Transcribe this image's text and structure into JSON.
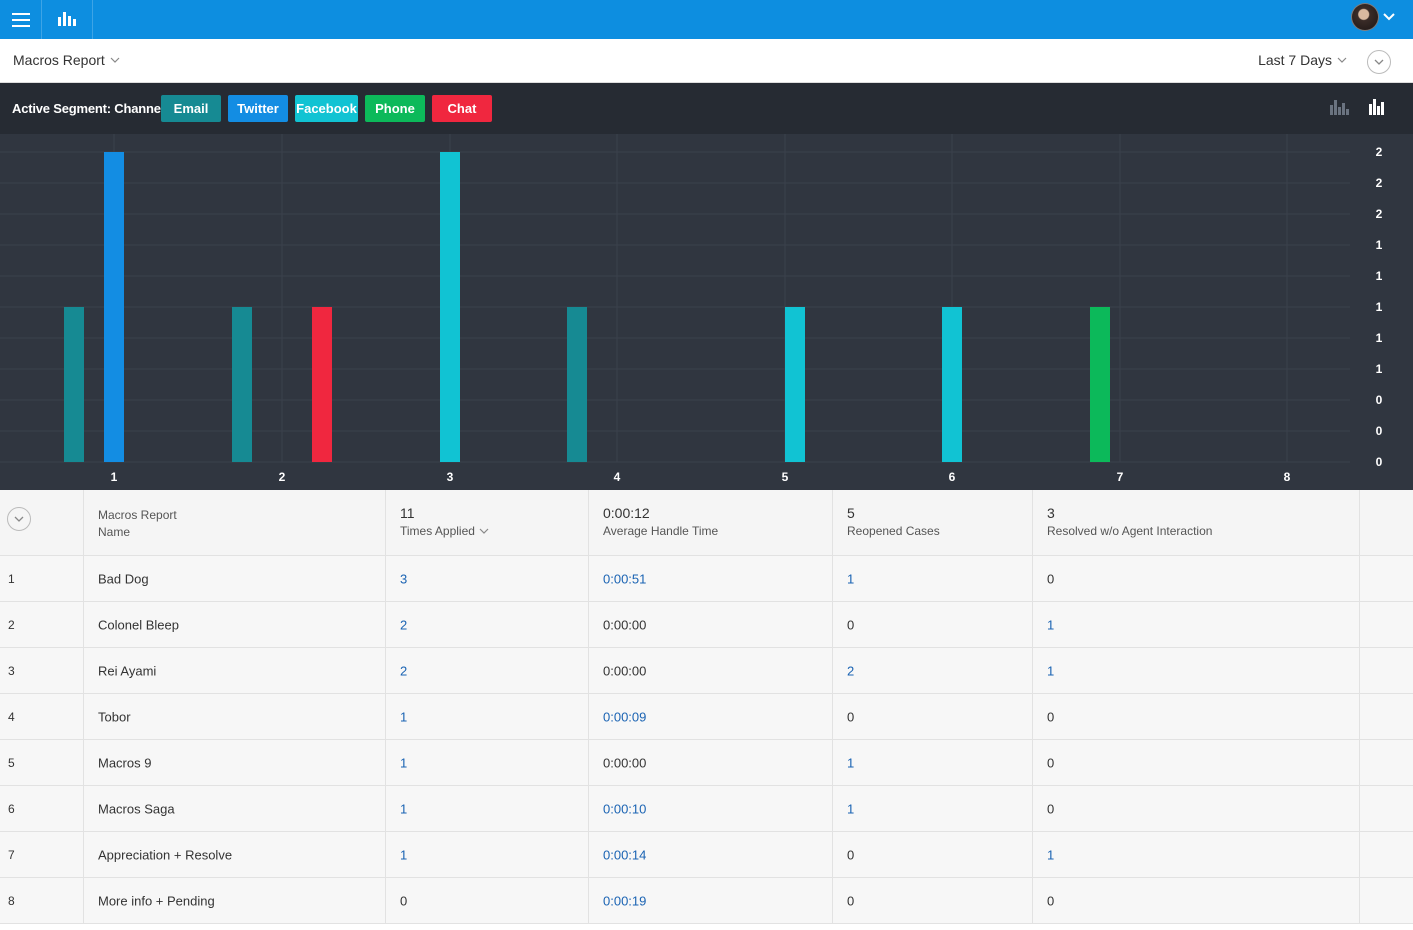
{
  "header": {
    "report_title": "Macros Report",
    "date_range": "Last 7 Days"
  },
  "segment": {
    "label": "Active Segment: Channels",
    "buttons": [
      {
        "label": "Email",
        "color": "#168a93"
      },
      {
        "label": "Twitter",
        "color": "#138de3"
      },
      {
        "label": "Facebook",
        "color": "#11c3d3"
      },
      {
        "label": "Phone",
        "color": "#0cb95a"
      },
      {
        "label": "Chat",
        "color": "#f0273f"
      }
    ]
  },
  "chart_data": {
    "type": "bar",
    "categories": [
      "1",
      "2",
      "3",
      "4",
      "5",
      "6",
      "7",
      "8"
    ],
    "y_tick_labels": [
      "2",
      "2",
      "2",
      "1",
      "1",
      "1",
      "1",
      "1",
      "0",
      "0",
      "0"
    ],
    "ylim": [
      0,
      2
    ],
    "grid": true,
    "series": [
      {
        "name": "Email",
        "color": "#168a93",
        "values": [
          1,
          1,
          0,
          1,
          0,
          0,
          0,
          0
        ]
      },
      {
        "name": "Twitter",
        "color": "#138de3",
        "values": [
          2,
          0,
          0,
          0,
          0,
          0,
          0,
          0
        ]
      },
      {
        "name": "Facebook",
        "color": "#11c3d3",
        "values": [
          0,
          0,
          2,
          0,
          1,
          1,
          0,
          0
        ]
      },
      {
        "name": "Phone",
        "color": "#0cb95a",
        "values": [
          0,
          0,
          0,
          0,
          0,
          0,
          1,
          0
        ]
      },
      {
        "name": "Chat",
        "color": "#f0273f",
        "values": [
          0,
          1,
          0,
          0,
          0,
          0,
          0,
          0
        ]
      }
    ]
  },
  "table": {
    "header": {
      "name_col_line1": "Macros Report",
      "name_col_line2": "Name",
      "columns": [
        {
          "value": "11",
          "label": "Times Applied"
        },
        {
          "value": "0:00:12",
          "label": "Average Handle Time"
        },
        {
          "value": "5",
          "label": "Reopened Cases"
        },
        {
          "value": "3",
          "label": "Resolved w/o Agent Interaction"
        }
      ]
    },
    "rows": [
      {
        "idx": "1",
        "name": "Bad Dog",
        "times": "3",
        "aht": "0:00:51",
        "reopened": "1",
        "resolved": "0"
      },
      {
        "idx": "2",
        "name": "Colonel Bleep",
        "times": "2",
        "aht": "0:00:00",
        "reopened": "0",
        "resolved": "1"
      },
      {
        "idx": "3",
        "name": "Rei Ayami",
        "times": "2",
        "aht": "0:00:00",
        "reopened": "2",
        "resolved": "1"
      },
      {
        "idx": "4",
        "name": "Tobor",
        "times": "1",
        "aht": "0:00:09",
        "reopened": "0",
        "resolved": "0"
      },
      {
        "idx": "5",
        "name": "Macros 9",
        "times": "1",
        "aht": "0:00:00",
        "reopened": "1",
        "resolved": "0"
      },
      {
        "idx": "6",
        "name": "Macros Saga",
        "times": "1",
        "aht": "0:00:10",
        "reopened": "1",
        "resolved": "0"
      },
      {
        "idx": "7",
        "name": "Appreciation + Resolve",
        "times": "1",
        "aht": "0:00:14",
        "reopened": "0",
        "resolved": "1"
      },
      {
        "idx": "8",
        "name": "More info + Pending",
        "times": "0",
        "aht": "0:00:19",
        "reopened": "0",
        "resolved": "0"
      }
    ]
  }
}
